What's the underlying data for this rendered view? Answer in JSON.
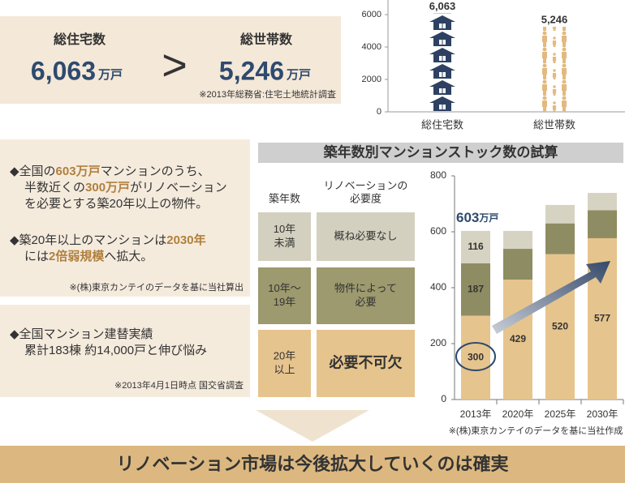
{
  "summary": {
    "housing_label": "総住宅数",
    "housing_value": "6,063",
    "housing_unit": "万戸",
    "comparator": ">",
    "household_label": "総世帯数",
    "household_value": "5,246",
    "household_unit": "万戸",
    "source": "※2013年総務省:住宅土地統計調査"
  },
  "chart_data": [
    {
      "type": "pictogram-bar",
      "categories": [
        "総住宅数",
        "総世帯数"
      ],
      "values": [
        6063,
        5246
      ],
      "value_labels": [
        "6,063",
        "5,246"
      ],
      "colors": [
        "#2e4163",
        "#e3b97f"
      ],
      "icons": [
        "house",
        "people"
      ],
      "ylim": [
        0,
        6900
      ],
      "yticks": [
        0,
        2000,
        4000,
        6000
      ]
    },
    {
      "type": "stacked-bar",
      "title": "築年数別マンションストック数の試算",
      "categories": [
        "2013年",
        "2020年",
        "2025年",
        "2030年"
      ],
      "series": [
        {
          "color": "#e6c48e",
          "values": [
            300,
            429,
            520,
            577
          ],
          "value_labels": [
            "300",
            "429",
            "520",
            "577"
          ]
        },
        {
          "color": "#8e8c62",
          "values": [
            187,
            110,
            110,
            100
          ],
          "value_labels": [
            "187",
            null,
            null,
            null
          ]
        },
        {
          "color": "#d6d3c2",
          "values": [
            116,
            64,
            66,
            62
          ],
          "value_labels": [
            "116",
            null,
            null,
            null
          ]
        }
      ],
      "ylim": [
        0,
        800
      ],
      "yticks": [
        0,
        200,
        400,
        600,
        800
      ],
      "annotation": {
        "text": "603",
        "unit": "万戸"
      },
      "source": "※(株)東京カンテイのデータを基に当社作成"
    }
  ],
  "table": {
    "headers": [
      [
        "築年数"
      ],
      [
        "リノベーションの",
        "必要度"
      ]
    ],
    "row_colors": [
      "#d3d0bf",
      "#9c9a6e",
      "#e6c48e"
    ],
    "rows": [
      [
        [
          "10年",
          "未満"
        ],
        [
          "概ね必要なし"
        ]
      ],
      [
        [
          "10年～",
          "19年"
        ],
        [
          "物件によって",
          "必要"
        ]
      ],
      [
        [
          "20年",
          "以上"
        ],
        [
          "必要不可欠"
        ]
      ]
    ]
  },
  "panels": [
    {
      "paragraphs": [
        [
          [
            {
              "text": "◆全国の"
            },
            {
              "text": "603万戸",
              "highlight": true
            },
            {
              "text": "マンションのうち、"
            }
          ],
          [
            {
              "text": "半数近くの"
            },
            {
              "text": "300万戸",
              "highlight": true
            },
            {
              "text": "がリノベーション"
            }
          ],
          [
            {
              "text": "を必要とする築20年以上の物件。"
            }
          ]
        ],
        [
          [
            {
              "text": "◆築20年以上のマンションは"
            },
            {
              "text": "2030年",
              "highlight": true
            }
          ],
          [
            {
              "text": "には"
            },
            {
              "text": "2倍弱規模",
              "highlight": true
            },
            {
              "text": "へ拡大。"
            }
          ]
        ]
      ],
      "note": "※(株)東京カンテイのデータを基に当社算出"
    },
    {
      "paragraphs": [
        [
          [
            {
              "text": "◆全国マンション建替実績"
            }
          ],
          [
            {
              "text": "累計183棟 約14,000戸と伸び悩み"
            }
          ]
        ]
      ],
      "note": "※2013年4月1日時点 国交省調査"
    }
  ],
  "conclusion": "リノベーション市場は今後拡大していくのは確実"
}
